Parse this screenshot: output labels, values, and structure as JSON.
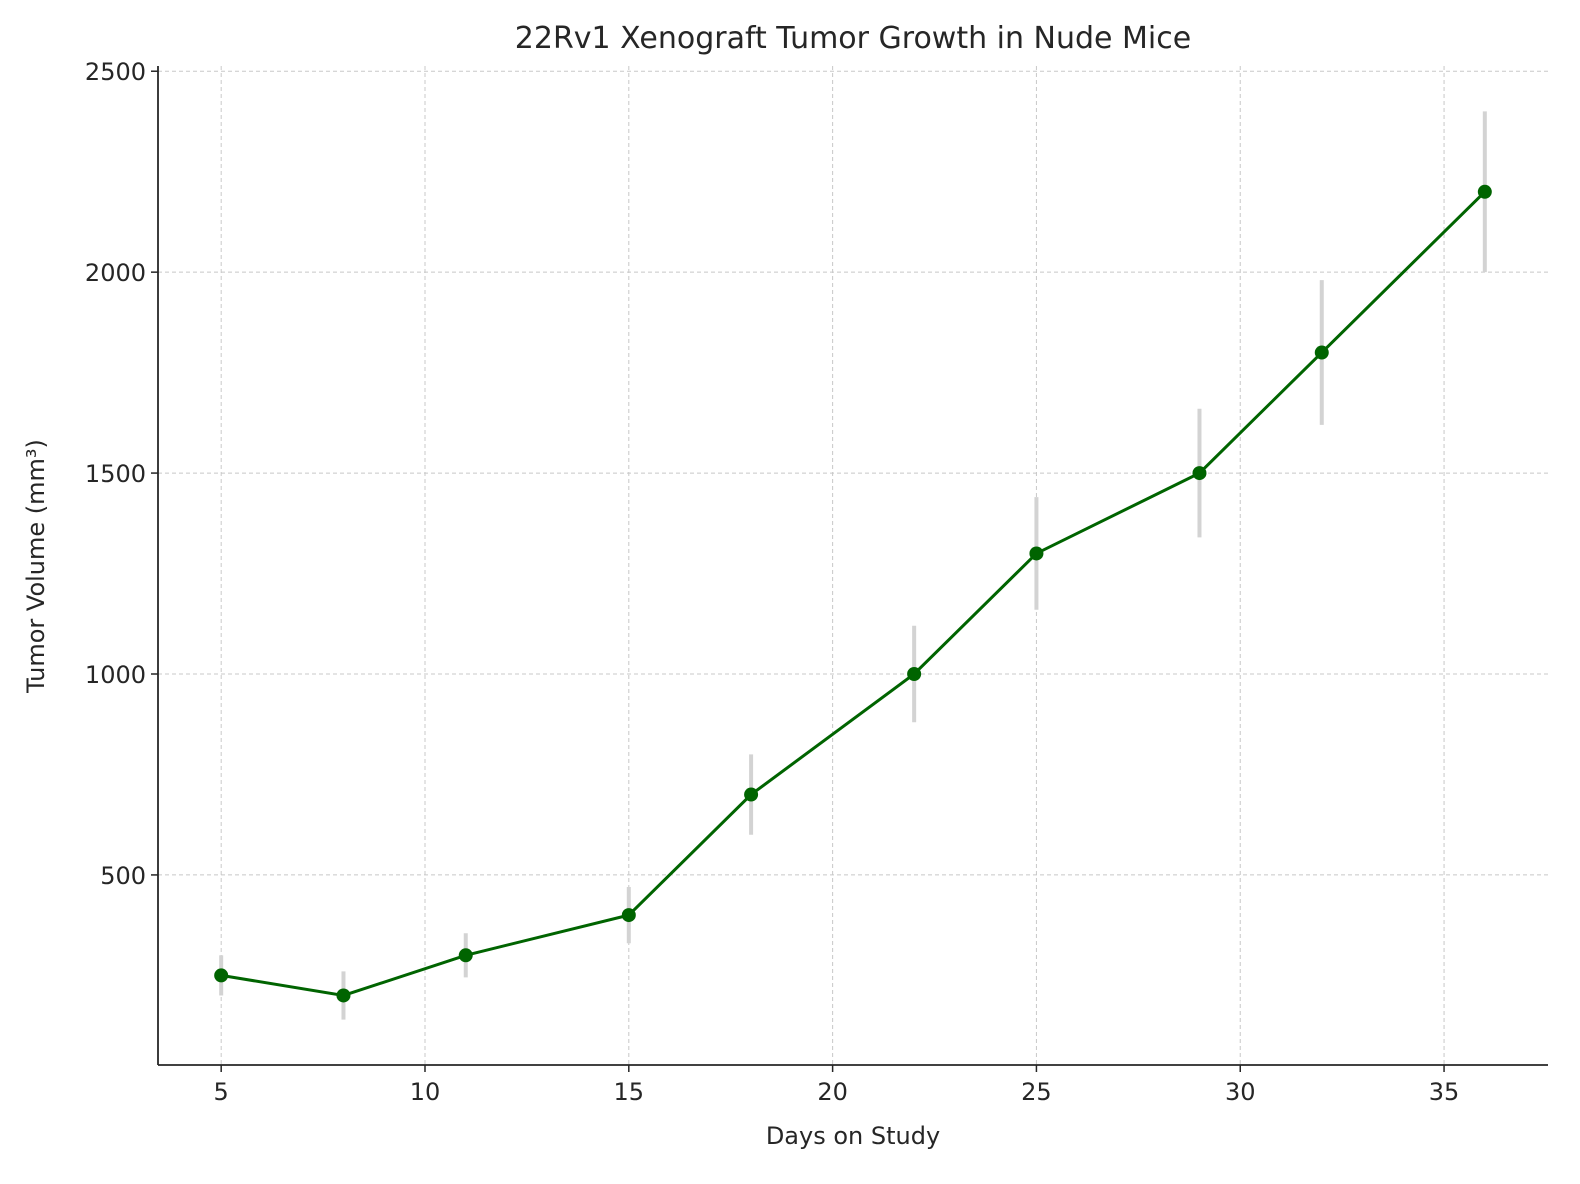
{
  "chart_data": {
    "type": "line",
    "title": "22Rv1 Xenograft Tumor Growth in Nude Mice",
    "xlabel": "Days on Study",
    "ylabel": "Tumor Volume (mm³)",
    "xlim": [
      3.45,
      37.55
    ],
    "ylim": [
      27,
      2513
    ],
    "xticks": [
      5,
      10,
      15,
      20,
      25,
      30,
      35
    ],
    "yticks": [
      500,
      1000,
      1500,
      2000,
      2500
    ],
    "grid": true,
    "x": [
      5,
      8,
      11,
      15,
      18,
      22,
      25,
      29,
      32,
      36
    ],
    "series": [
      {
        "values": [
          250,
          200,
          300,
          400,
          700,
          1000,
          1300,
          1500,
          1800,
          2200
        ],
        "errors": [
          50,
          60,
          55,
          70,
          100,
          120,
          140,
          160,
          180,
          200
        ],
        "color": "#006400",
        "error_color": "#d3d3d3",
        "marker": "circle"
      }
    ]
  }
}
